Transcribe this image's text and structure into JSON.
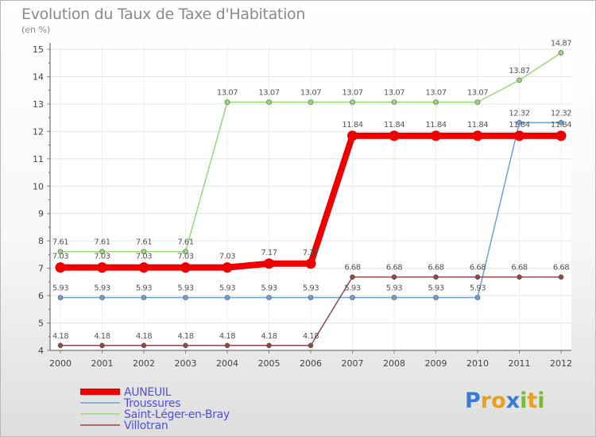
{
  "chart_data": {
    "type": "line",
    "title": "Evolution du Taux de Taxe d'Habitation",
    "units": "(en %)",
    "xlabel": "",
    "ylabel": "(en %)",
    "ylim": [
      4,
      15
    ],
    "yticks": [
      4,
      5,
      6,
      7,
      8,
      9,
      10,
      11,
      12,
      13,
      14,
      15
    ],
    "x": [
      "2000",
      "2001",
      "2002",
      "2003",
      "2004",
      "2005",
      "2006",
      "2007",
      "2008",
      "2009",
      "2010",
      "2011",
      "2012"
    ],
    "series": [
      {
        "name": "AUNEUIL",
        "color": "#ee0000",
        "emphasis": true,
        "values": [
          7.03,
          7.03,
          7.03,
          7.03,
          7.03,
          7.17,
          7.17,
          11.84,
          11.84,
          11.84,
          11.84,
          11.84,
          11.84
        ],
        "labels": [
          "7.03",
          "7.03",
          "7.03",
          "7.03",
          "7.03",
          "7.17",
          "7.17",
          "11.84",
          "11.84",
          "11.84",
          "11.84",
          "11.84",
          "11.84"
        ]
      },
      {
        "name": "Troussures",
        "color": "#6f9fd0",
        "emphasis": false,
        "values": [
          5.93,
          5.93,
          5.93,
          5.93,
          5.93,
          5.93,
          5.93,
          5.93,
          5.93,
          5.93,
          5.93,
          12.32,
          12.32
        ],
        "labels": [
          "5.93",
          "5.93",
          "5.93",
          "5.93",
          "5.93",
          "5.93",
          "5.93",
          "5.93",
          "5.93",
          "5.93",
          "5.93",
          "12.32",
          "12.32"
        ]
      },
      {
        "name": "Saint-Léger-en-Bray",
        "color": "#99d77a",
        "emphasis": false,
        "values": [
          7.61,
          7.61,
          7.61,
          7.61,
          13.07,
          13.07,
          13.07,
          13.07,
          13.07,
          13.07,
          13.07,
          13.87,
          14.87
        ],
        "labels": [
          "7.61",
          "7.61",
          "7.61",
          "7.61",
          "13.07",
          "13.07",
          "13.07",
          "13.07",
          "13.07",
          "13.07",
          "13.07",
          "13.87",
          "14.87"
        ]
      },
      {
        "name": "Villotran",
        "color": "#8c4a4a",
        "emphasis": false,
        "values": [
          4.18,
          4.18,
          4.18,
          4.18,
          4.18,
          4.18,
          4.18,
          6.68,
          6.68,
          6.68,
          6.68,
          6.68,
          6.68
        ],
        "labels": [
          "4.18",
          "4.18",
          "4.18",
          "4.18",
          "4.18",
          "4.18",
          "4.18",
          "6.68",
          "6.68",
          "6.68",
          "6.68",
          "6.68",
          "6.68"
        ]
      }
    ],
    "legend": {
      "position": "bottom-left",
      "text_color": "#4f4fe0"
    }
  },
  "logo": {
    "letters": [
      "P",
      "r",
      "o",
      "x",
      "i",
      "t",
      "i"
    ],
    "colors": [
      "#3a7bd5",
      "#e8a020",
      "#e8a020",
      "#3a7bd5",
      "#7ab83a",
      "#e8a020",
      "#7ab83a"
    ]
  }
}
